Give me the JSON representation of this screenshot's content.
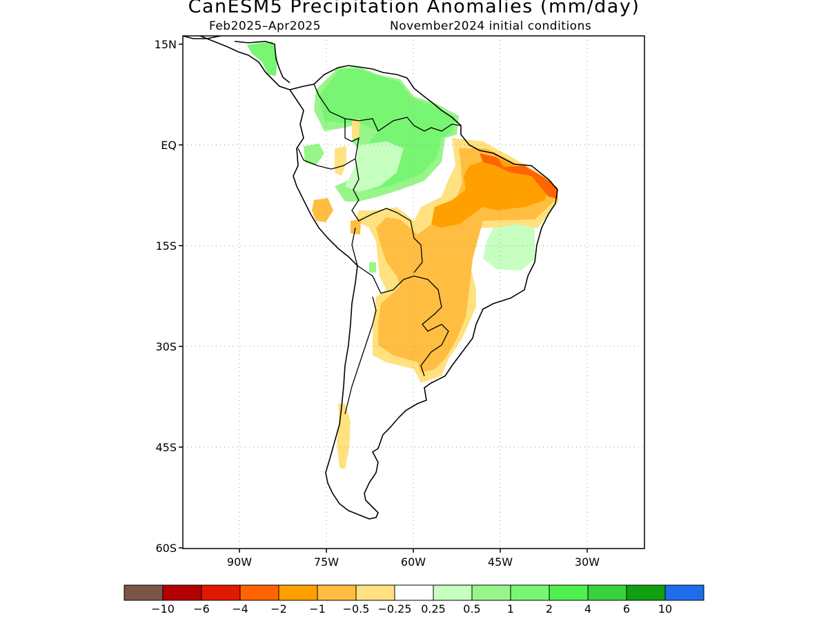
{
  "title": "CanESM5 Precipitation Anomalies (mm/day)",
  "subtitle_left": "Feb2025–Apr2025",
  "subtitle_right": "November2024 initial conditions",
  "map": {
    "region": "South America",
    "lon_range": [
      "97W",
      "17W"
    ],
    "lat_range": [
      "60S",
      "15N"
    ],
    "lat_ticks": [
      "15N",
      "EQ",
      "15S",
      "30S",
      "45S",
      "60S"
    ],
    "lon_ticks": [
      "90W",
      "75W",
      "60W",
      "45W",
      "30W"
    ],
    "grid": "dotted"
  },
  "legend": {
    "labels": [
      "−10",
      "−6",
      "−4",
      "−2",
      "−1",
      "−0.5",
      "−0.25",
      "0.25",
      "0.5",
      "1",
      "2",
      "4",
      "6",
      "10"
    ],
    "colors": [
      "#7a5548",
      "#b40000",
      "#e11900",
      "#ff6400",
      "#ffa000",
      "#ffbe41",
      "#ffe17f",
      "#ffffff",
      "#c6ffbf",
      "#98f58a",
      "#78f573",
      "#50f050",
      "#37d23c",
      "#0fa00f",
      "#1e6eeb"
    ]
  }
}
